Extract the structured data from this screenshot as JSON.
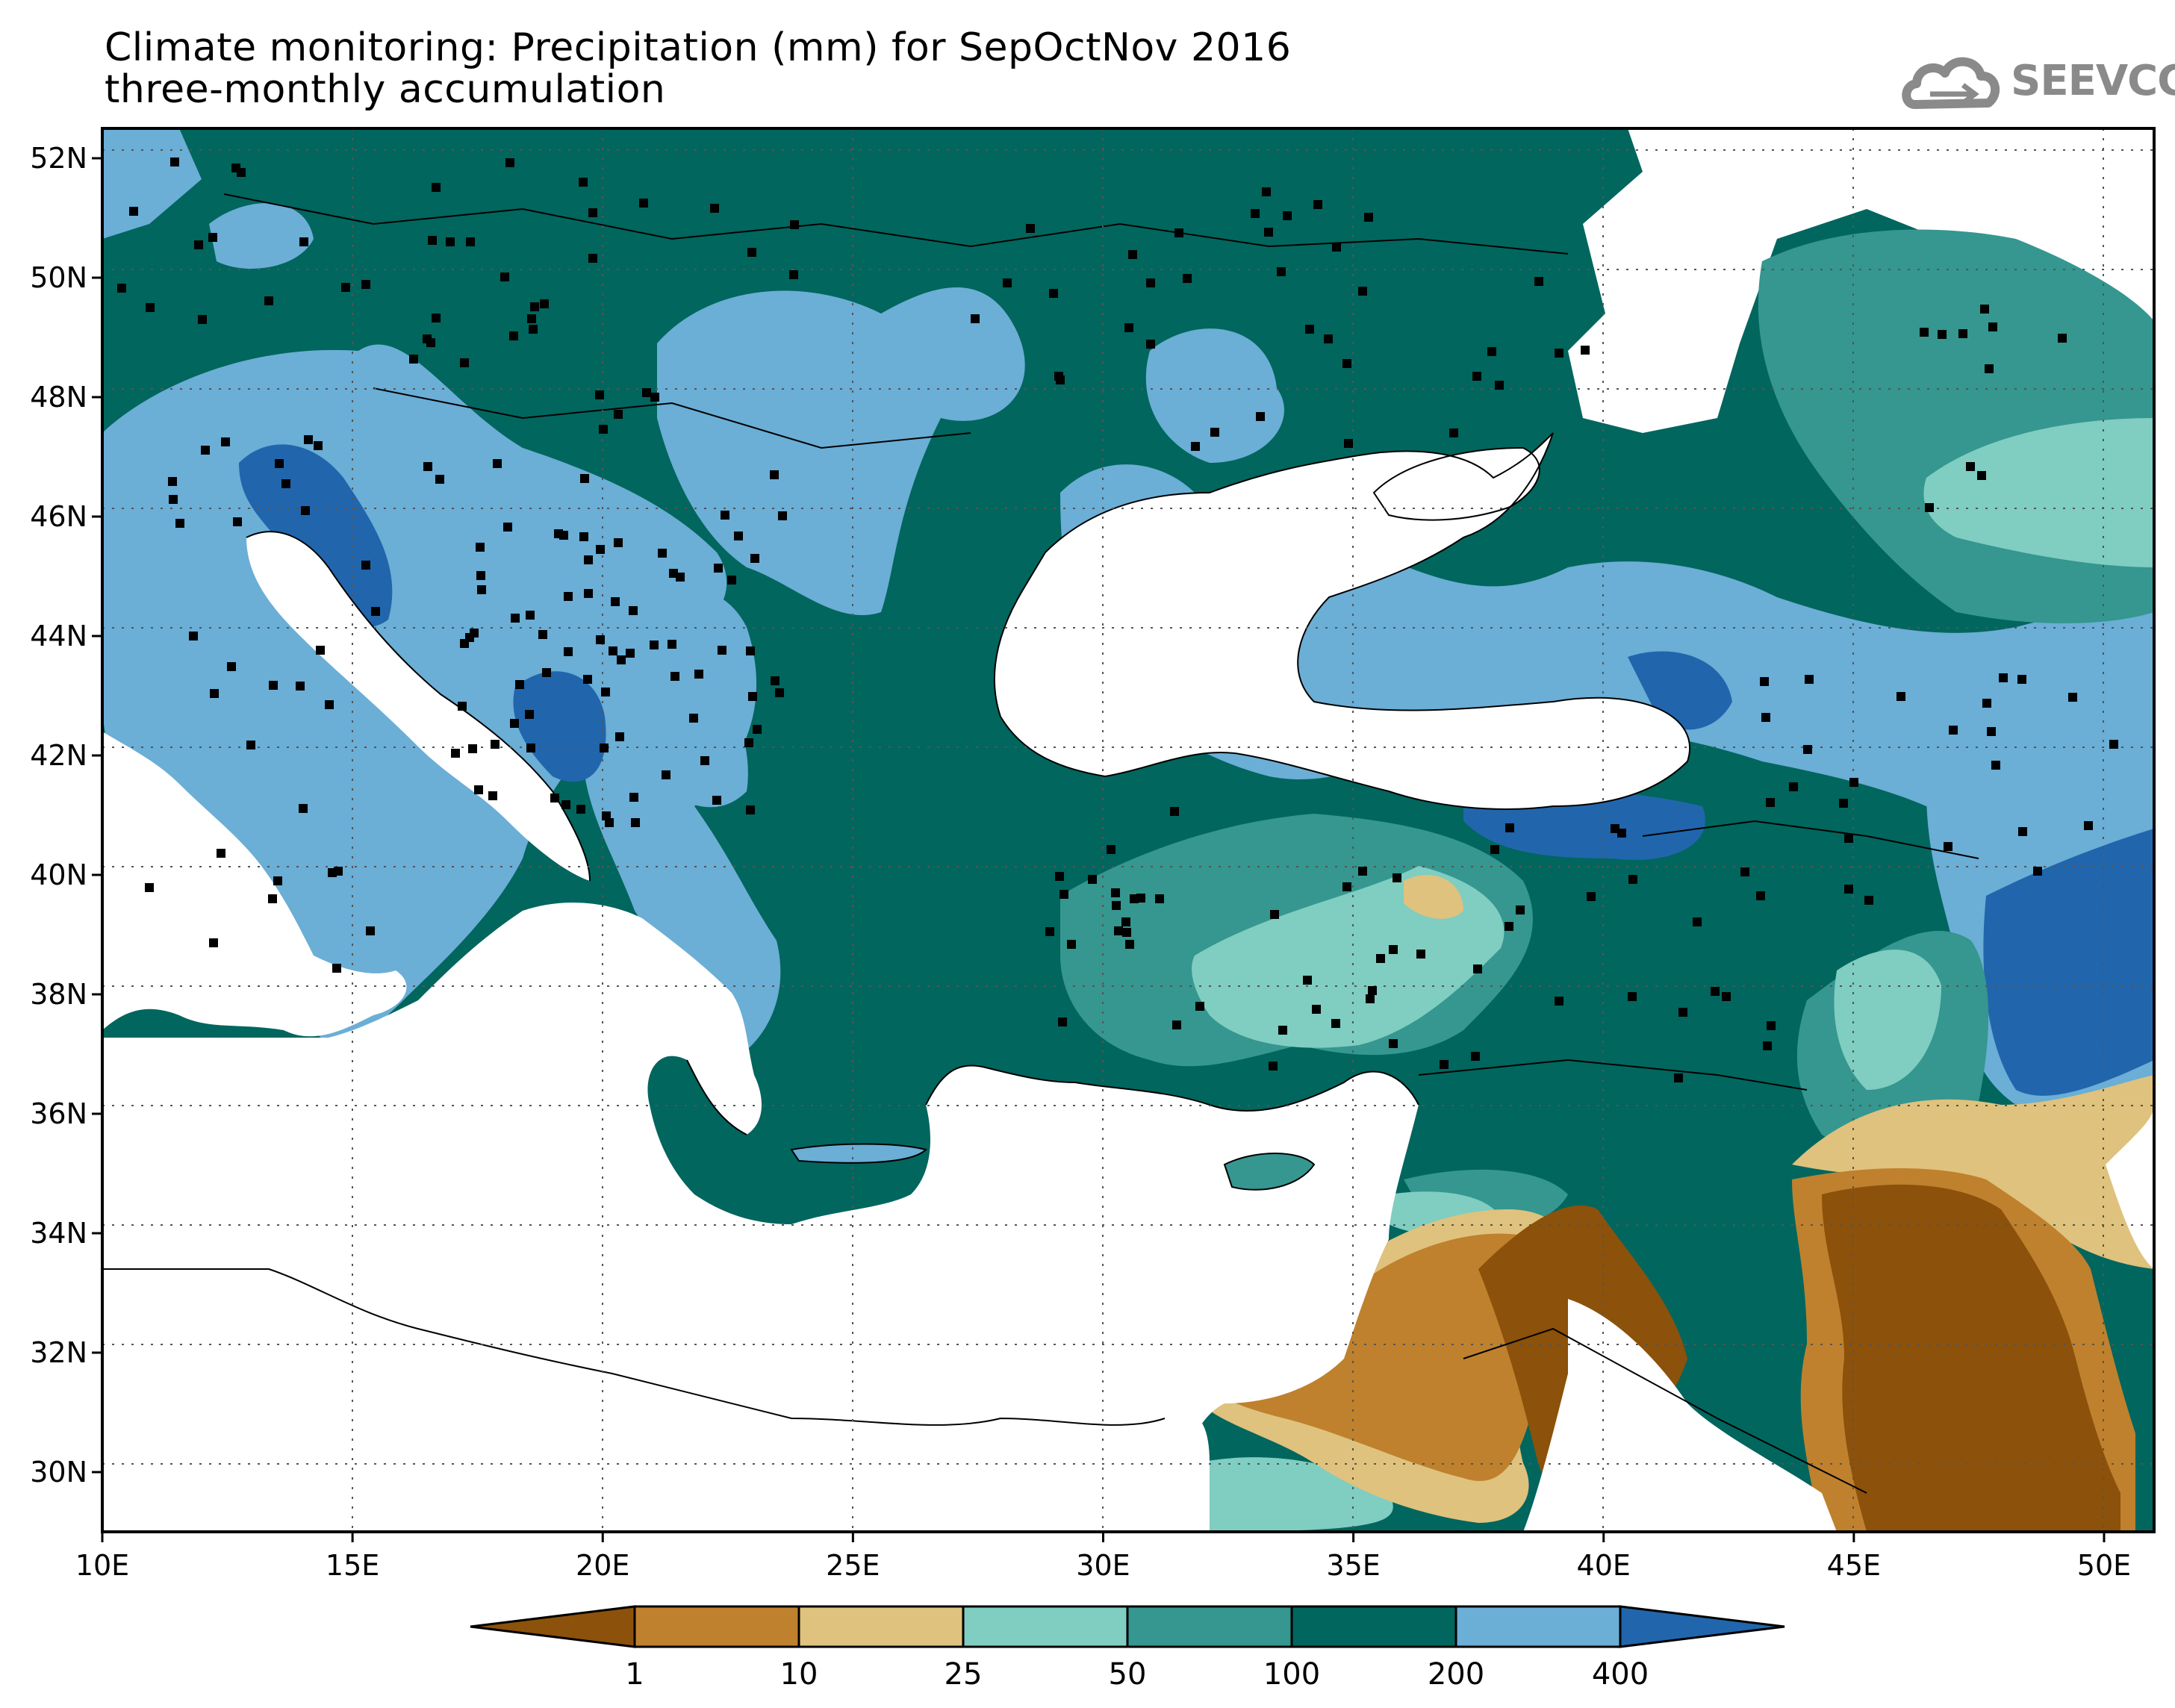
{
  "title_line1": "Climate monitoring: Precipitation (mm) for SepOctNov 2016",
  "title_line2": "three-monthly accumulation",
  "logo_text": "SEEVCCC",
  "map": {
    "lat_ticks": [
      "52N",
      "50N",
      "48N",
      "46N",
      "44N",
      "42N",
      "40N",
      "38N",
      "36N",
      "34N",
      "32N",
      "30N"
    ],
    "lon_ticks": [
      "10E",
      "15E",
      "20E",
      "25E",
      "30E",
      "35E",
      "40E",
      "45E",
      "50E"
    ],
    "lon_range": [
      10,
      51
    ],
    "lat_range": [
      29,
      52.5
    ]
  },
  "colorbar": {
    "labels": [
      "1",
      "10",
      "25",
      "50",
      "100",
      "200",
      "400"
    ],
    "colors": [
      "#8c510a",
      "#bf812d",
      "#dfc27d",
      "#80cdc1",
      "#35978f",
      "#01665e",
      "#6baed6",
      "#2166ac"
    ]
  }
}
